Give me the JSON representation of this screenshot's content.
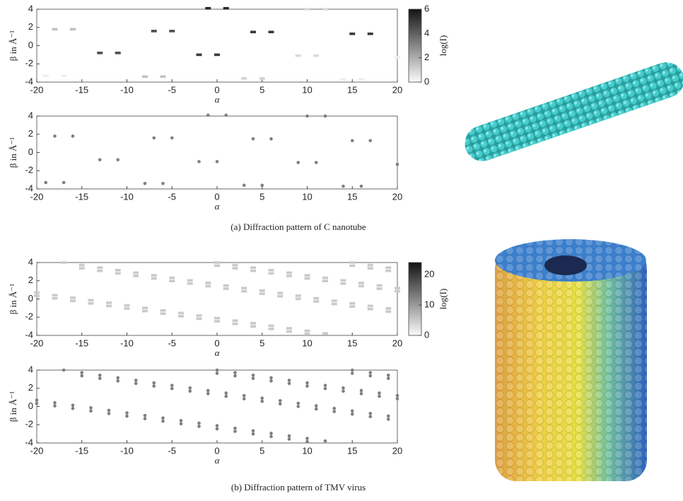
{
  "chart_data": [
    {
      "type": "scatter",
      "caption": "(a) Diffraction pattern of C nanotube",
      "xlabel": "α",
      "ylabel": "β in Å⁻¹",
      "xlim": [
        -20,
        20
      ],
      "ylim": [
        -4,
        4
      ],
      "xticks": [
        -20,
        -15,
        -10,
        -5,
        0,
        5,
        10,
        15,
        20
      ],
      "yticks": [
        -4,
        -2,
        0,
        2,
        4
      ],
      "colorbar": {
        "label": "log(I)",
        "clim": [
          0,
          6
        ],
        "cticks": [
          0,
          2,
          4,
          6
        ]
      },
      "series": [
        {
          "color": "#7f7f7f",
          "x": [
            -19,
            -18,
            -17,
            -16,
            -13,
            -11,
            -8,
            -7,
            -6,
            -5,
            -2,
            -1,
            0,
            1,
            3,
            4,
            5,
            6,
            9,
            10,
            11,
            12,
            14,
            15,
            16,
            17,
            20
          ],
          "y": [
            -3.3,
            1.8,
            -3.3,
            1.8,
            -0.8,
            -0.8,
            -3.4,
            1.6,
            -3.4,
            1.6,
            -1,
            4.1,
            -1,
            4.1,
            -3.6,
            1.5,
            -3.6,
            1.5,
            -1.1,
            4,
            -1.1,
            4,
            -3.7,
            1.3,
            -3.7,
            1.3,
            -1.3
          ],
          "intensity": [
            0.3,
            1.5,
            0.3,
            1.5,
            4.5,
            4.5,
            1.5,
            4.5,
            1.5,
            4.5,
            5,
            5.5,
            5,
            5.5,
            1,
            5,
            1,
            5,
            0.8,
            0.8,
            0.8,
            0.8,
            0.3,
            5,
            0.3,
            5,
            0.3
          ]
        }
      ]
    },
    {
      "type": "scatter",
      "caption": "(b) Diffraction pattern of TMV virus",
      "xlabel": "α",
      "ylabel": "β in Å⁻¹",
      "xlim": [
        -20,
        20
      ],
      "ylim": [
        -4,
        4
      ],
      "xticks": [
        -20,
        -15,
        -10,
        -5,
        0,
        5,
        10,
        15,
        20
      ],
      "yticks": [
        -4,
        -2,
        0,
        2,
        4
      ],
      "colorbar": {
        "label": "log(I)",
        "clim": [
          0,
          24
        ],
        "cticks": [
          0,
          10,
          20
        ]
      },
      "series": [
        {
          "color": "#7f7f7f",
          "intensity": 5,
          "x": [
            -20,
            -18,
            -16,
            -14,
            -12,
            -10,
            -8,
            -6,
            -4,
            -2,
            0,
            2,
            4,
            6,
            8,
            10,
            12
          ],
          "y": [
            0.7,
            0.42,
            0.14,
            -0.14,
            -0.42,
            -0.7,
            -0.98,
            -1.26,
            -1.54,
            -1.82,
            -2.1,
            -2.38,
            -2.66,
            -2.94,
            -3.22,
            -3.5,
            -3.78
          ]
        },
        {
          "color": "#7f7f7f",
          "intensity": 5,
          "x": [
            -20,
            -18,
            -16,
            -14,
            -12,
            -10,
            -8,
            -6,
            -4,
            -2,
            0,
            2,
            4,
            6,
            8,
            10
          ],
          "y": [
            0.35,
            0.07,
            -0.21,
            -0.49,
            -0.77,
            -1.05,
            -1.33,
            -1.61,
            -1.89,
            -2.17,
            -2.45,
            -2.73,
            -3.01,
            -3.29,
            -3.57,
            -3.85
          ]
        },
        {
          "color": "#7f7f7f",
          "intensity": 5,
          "x": [
            -17,
            -15,
            -13,
            -11,
            -9,
            -7,
            -5,
            -3,
            -1,
            1,
            3,
            5,
            7,
            9,
            11,
            13,
            15,
            17,
            19
          ],
          "y": [
            4,
            3.72,
            3.44,
            3.16,
            2.88,
            2.6,
            2.32,
            2.04,
            1.76,
            1.48,
            1.2,
            0.92,
            0.64,
            0.36,
            0.08,
            -0.2,
            -0.48,
            -0.76,
            -1.04
          ]
        },
        {
          "color": "#7f7f7f",
          "intensity": 5,
          "x": [
            -15,
            -13,
            -11,
            -9,
            -7,
            -5,
            -3,
            -1,
            1,
            3,
            5,
            7,
            9,
            11,
            13,
            15,
            17,
            19
          ],
          "y": [
            3.37,
            3.09,
            2.81,
            2.53,
            2.25,
            1.97,
            1.69,
            1.41,
            1.13,
            0.85,
            0.57,
            0.29,
            0.01,
            -0.27,
            -0.55,
            -0.83,
            -1.11,
            -1.39
          ]
        },
        {
          "color": "#7f7f7f",
          "intensity": 5,
          "x": [
            0,
            2,
            4,
            6,
            8,
            10,
            12,
            14,
            16,
            18,
            20
          ],
          "y": [
            4,
            3.72,
            3.44,
            3.16,
            2.88,
            2.6,
            2.32,
            2.04,
            1.76,
            1.48,
            1.2
          ]
        },
        {
          "color": "#7f7f7f",
          "intensity": 5,
          "x": [
            0,
            2,
            4,
            6,
            8,
            10,
            12,
            14,
            16,
            18,
            20
          ],
          "y": [
            3.65,
            3.37,
            3.09,
            2.81,
            2.53,
            2.25,
            1.97,
            1.69,
            1.41,
            1.13,
            0.85
          ]
        },
        {
          "color": "#7f7f7f",
          "intensity": 5,
          "x": [
            15,
            17,
            19
          ],
          "y": [
            4,
            3.72,
            3.44
          ]
        },
        {
          "color": "#7f7f7f",
          "intensity": 5,
          "x": [
            15,
            17,
            19
          ],
          "y": [
            3.65,
            3.37,
            3.09
          ]
        }
      ]
    }
  ]
}
